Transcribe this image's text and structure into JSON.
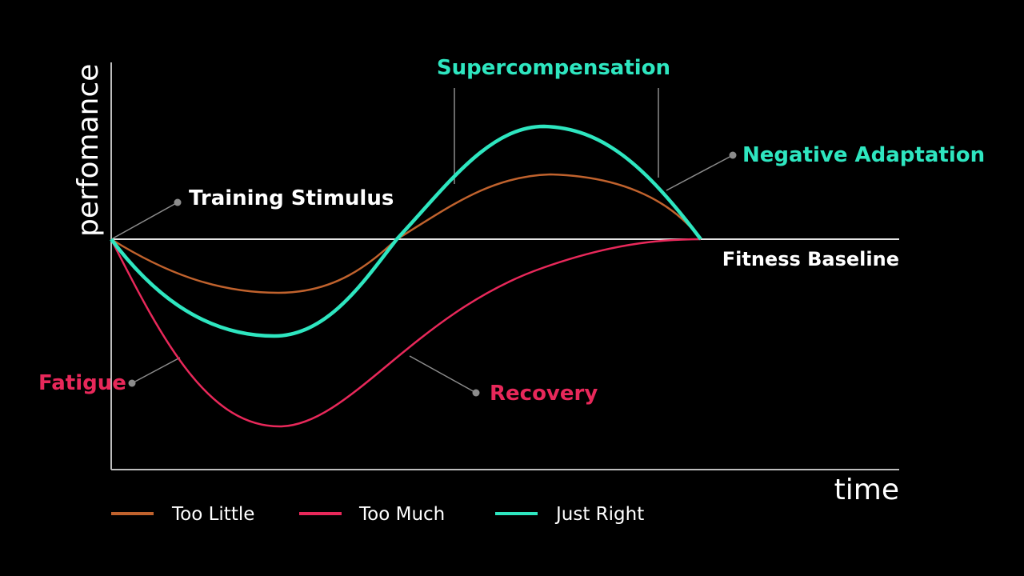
{
  "axis": {
    "y_label": "perfomance",
    "x_label": "time"
  },
  "baseline_label": "Fitness Baseline",
  "annotations": {
    "training_stimulus": "Training Stimulus",
    "supercompensation": "Supercompensation",
    "negative_adaptation": "Negative Adaptation",
    "fatigue": "Fatigue",
    "recovery": "Recovery"
  },
  "legend": {
    "too_little": "Too Little",
    "too_much": "Too Much",
    "just_right": "Just Right"
  },
  "colors": {
    "background": "#000000",
    "axis": "#bdbdbd",
    "text": "#ffffff",
    "too_little": "#c0622d",
    "too_much": "#e8285a",
    "just_right": "#2ee6c0",
    "leader": "#8c8c8c"
  }
}
